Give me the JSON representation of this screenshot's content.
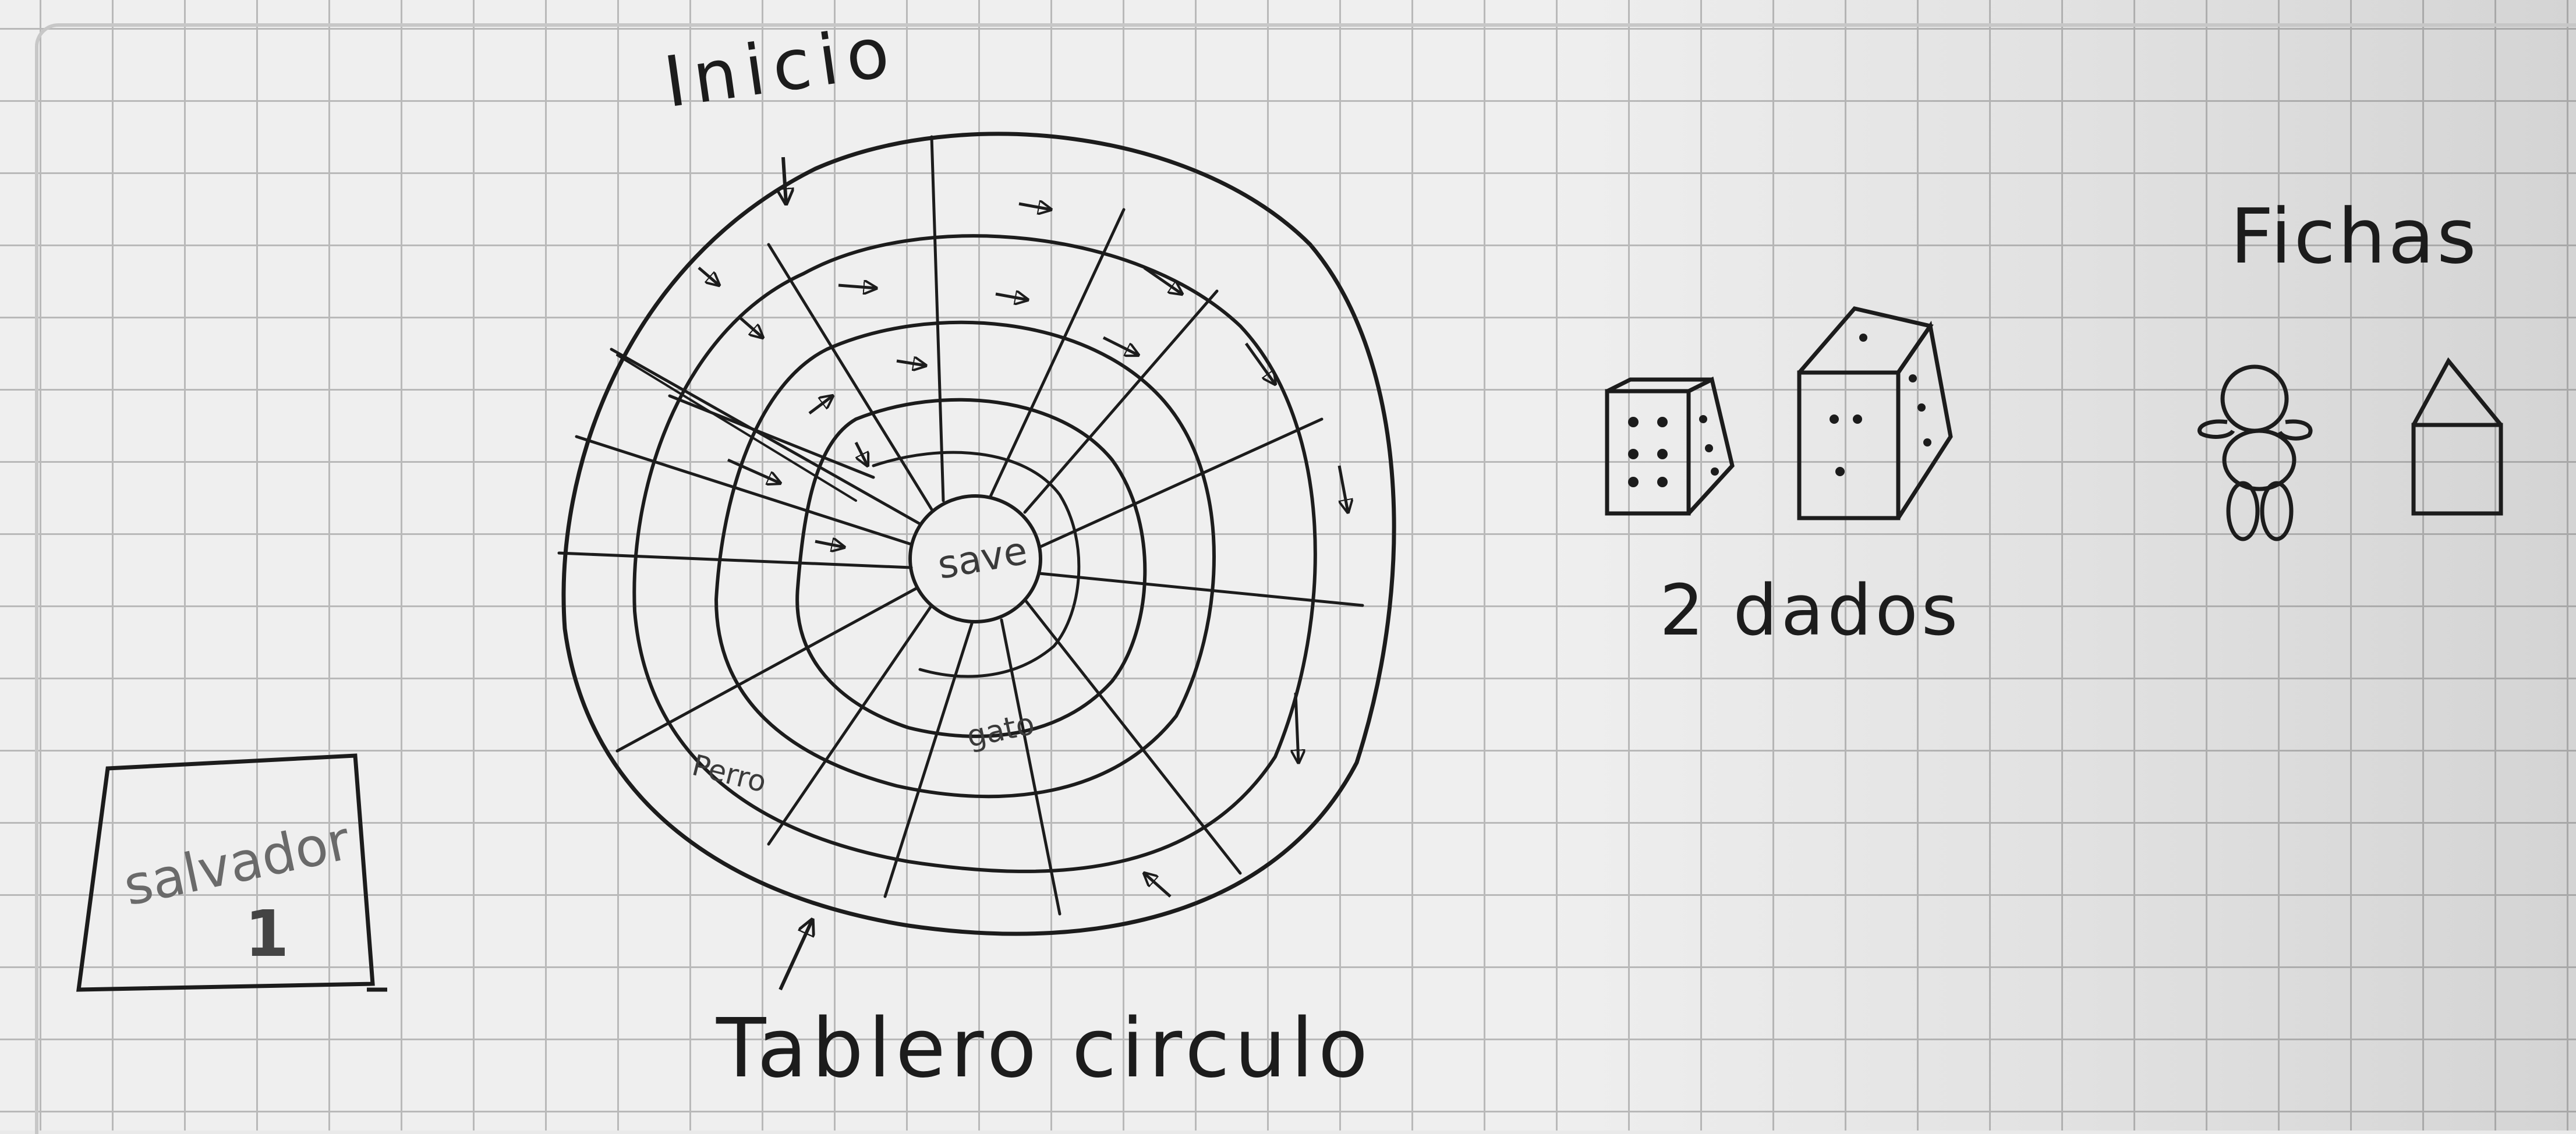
{
  "labels": {
    "inicio": "Inicio",
    "fichas": "Fichas",
    "dados": "2 dados",
    "tablero": "Tablero circulo",
    "center": "save",
    "gato": "gato",
    "perro": "Perro",
    "salvador": "salvador",
    "salvador_num": "1"
  },
  "icons": {
    "board": "circular-board",
    "start_arrow": "arrow-down-icon",
    "board_arrow": "arrow-up-icon",
    "die": "die-icon",
    "token_person": "person-token-icon",
    "token_house": "house-token-icon",
    "card": "card-icon"
  },
  "colors": {
    "ink": "#1c1c1c",
    "pencil": "#3a3a3a",
    "grid": "#b9b9b9",
    "paper": "#efefef"
  }
}
